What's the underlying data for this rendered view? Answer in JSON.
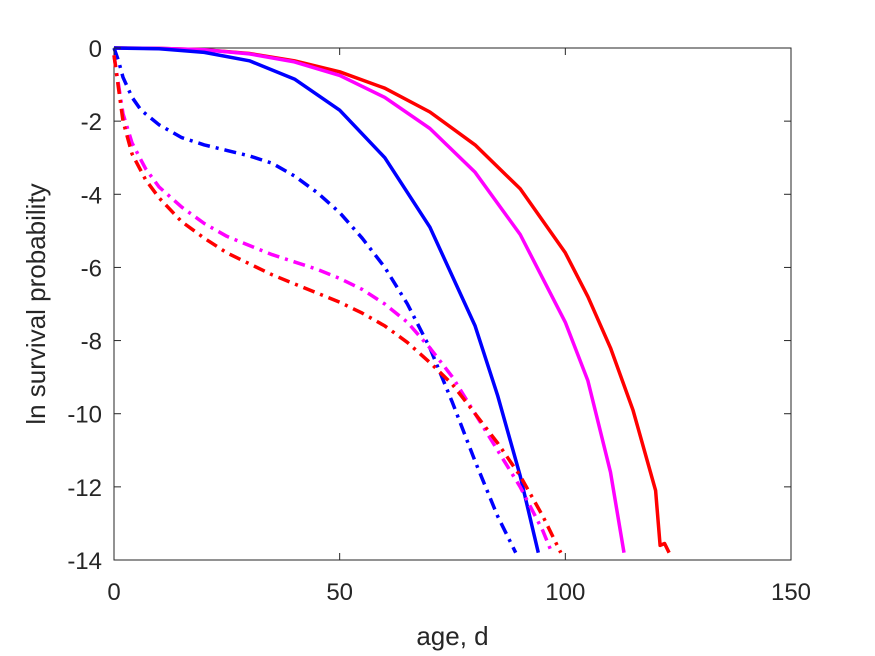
{
  "chart_data": {
    "type": "line",
    "title": "",
    "xlabel": "age, d",
    "ylabel": "ln survival probability",
    "xlim": [
      0,
      150
    ],
    "ylim": [
      -14,
      0
    ],
    "xticks": [
      0,
      50,
      100,
      150
    ],
    "yticks": [
      0,
      -2,
      -4,
      -6,
      -8,
      -10,
      -12,
      -14
    ],
    "xtick_labels": [
      "0",
      "50",
      "100",
      "150"
    ],
    "ytick_labels": [
      "0",
      "-2",
      "-4",
      "-6",
      "-8",
      "-10",
      "-12",
      "-14"
    ],
    "grid": false,
    "legend": "none",
    "series": [
      {
        "color": "#ff0000",
        "style": "solid",
        "x": [
          0,
          10,
          20,
          30,
          40,
          50,
          60,
          70,
          80,
          90,
          100,
          105,
          110,
          115,
          120,
          121,
          122,
          123
        ],
        "y": [
          0,
          -0.01,
          -0.05,
          -0.15,
          -0.35,
          -0.65,
          -1.1,
          -1.75,
          -2.65,
          -3.85,
          -5.6,
          -6.8,
          -8.2,
          -9.9,
          -12.1,
          -13.6,
          -13.55,
          -13.8
        ]
      },
      {
        "color": "#ff00ff",
        "style": "solid",
        "x": [
          0,
          10,
          20,
          30,
          40,
          50,
          60,
          70,
          80,
          90,
          100,
          105,
          110,
          113
        ],
        "y": [
          0,
          -0.01,
          -0.05,
          -0.16,
          -0.38,
          -0.75,
          -1.35,
          -2.2,
          -3.4,
          -5.1,
          -7.5,
          -9.1,
          -11.6,
          -13.8
        ]
      },
      {
        "color": "#0000ff",
        "style": "solid",
        "x": [
          0,
          10,
          20,
          30,
          40,
          50,
          60,
          70,
          80,
          85,
          90,
          94
        ],
        "y": [
          0,
          -0.02,
          -0.12,
          -0.35,
          -0.85,
          -1.7,
          -3.0,
          -4.9,
          -7.6,
          -9.5,
          -11.7,
          -13.8
        ]
      },
      {
        "color": "#0000ff",
        "style": "dashdot",
        "x": [
          0,
          1,
          2,
          4,
          6,
          10,
          15,
          20,
          25,
          30,
          35,
          40,
          45,
          50,
          55,
          60,
          65,
          70,
          75,
          80,
          85,
          89
        ],
        "y": [
          0,
          -0.35,
          -0.8,
          -1.35,
          -1.7,
          -2.1,
          -2.45,
          -2.65,
          -2.8,
          -2.95,
          -3.15,
          -3.5,
          -3.95,
          -4.5,
          -5.2,
          -6.0,
          -7.0,
          -8.2,
          -9.7,
          -11.3,
          -12.8,
          -13.8
        ]
      },
      {
        "color": "#ff00ff",
        "style": "dashdot",
        "x": [
          0,
          1,
          2,
          4,
          7,
          10,
          15,
          20,
          25,
          30,
          35,
          40,
          45,
          50,
          55,
          60,
          65,
          70,
          75,
          80,
          85,
          90,
          95,
          97
        ],
        "y": [
          -0.2,
          -1.0,
          -1.8,
          -2.6,
          -3.3,
          -3.8,
          -4.35,
          -4.8,
          -5.15,
          -5.4,
          -5.65,
          -5.85,
          -6.05,
          -6.3,
          -6.6,
          -7.0,
          -7.5,
          -8.2,
          -9.0,
          -10.0,
          -11.0,
          -12.0,
          -13.2,
          -13.8
        ]
      },
      {
        "color": "#ff0000",
        "style": "dashdot",
        "x": [
          0,
          1,
          2,
          4,
          7,
          10,
          15,
          20,
          25,
          30,
          35,
          40,
          45,
          50,
          55,
          60,
          65,
          70,
          75,
          80,
          85,
          90,
          95,
          99
        ],
        "y": [
          -0.2,
          -1.1,
          -2.0,
          -2.9,
          -3.6,
          -4.1,
          -4.75,
          -5.2,
          -5.6,
          -5.9,
          -6.2,
          -6.45,
          -6.7,
          -6.95,
          -7.25,
          -7.6,
          -8.05,
          -8.6,
          -9.2,
          -10.0,
          -10.8,
          -11.7,
          -12.8,
          -13.8
        ]
      }
    ]
  }
}
